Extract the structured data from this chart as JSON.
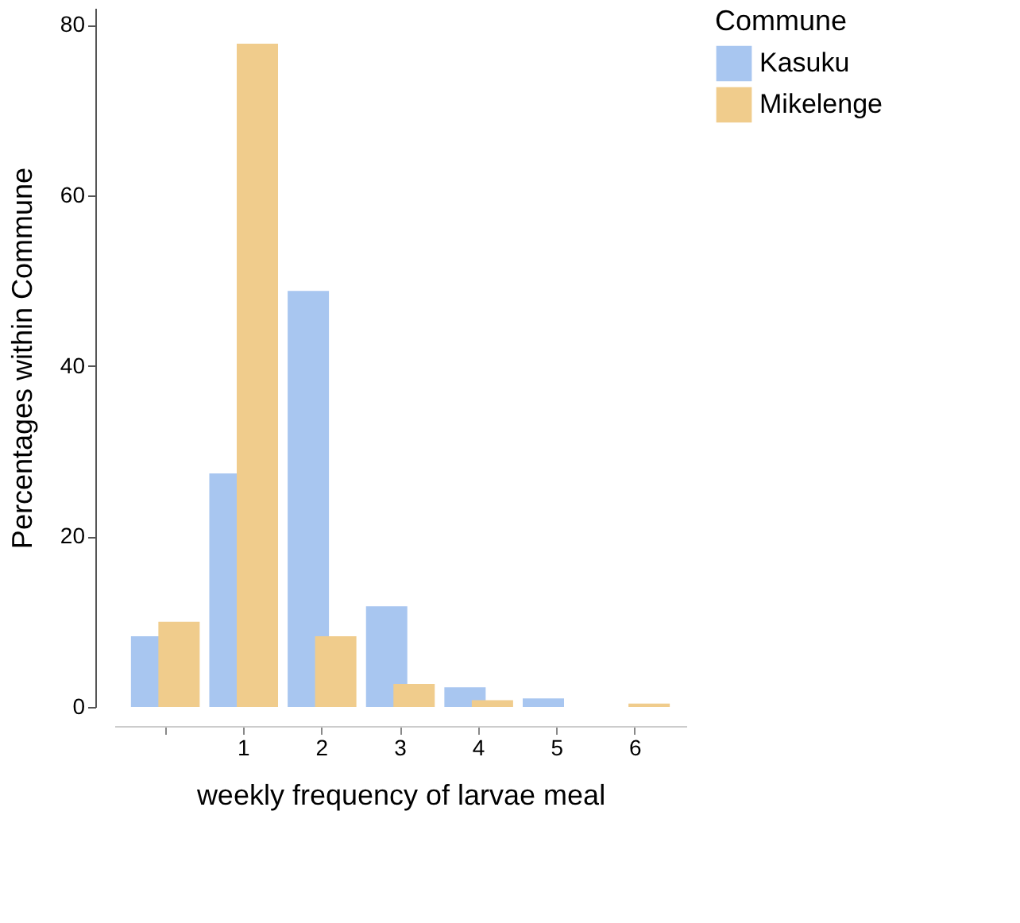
{
  "chart_data": {
    "type": "bar",
    "xlabel": "weekly frequency of larvae meal",
    "ylabel": "Percentages within Commune",
    "legend_title": "Commune",
    "categories": [
      null,
      "1",
      "2",
      "3",
      "4",
      "5",
      "6"
    ],
    "series": [
      {
        "name": "Kasuku",
        "color": "#a8c6f0",
        "values": [
          8.3,
          27.4,
          48.8,
          11.8,
          2.3,
          1.0,
          null
        ]
      },
      {
        "name": "Mikelenge",
        "color": "#f0cc8c",
        "values": [
          10.0,
          77.8,
          8.3,
          2.7,
          0.8,
          null,
          0.4
        ]
      }
    ],
    "ylim": [
      0,
      82
    ],
    "yticks": [
      0,
      20,
      40,
      60,
      80
    ],
    "grid": false,
    "legend": "right"
  }
}
